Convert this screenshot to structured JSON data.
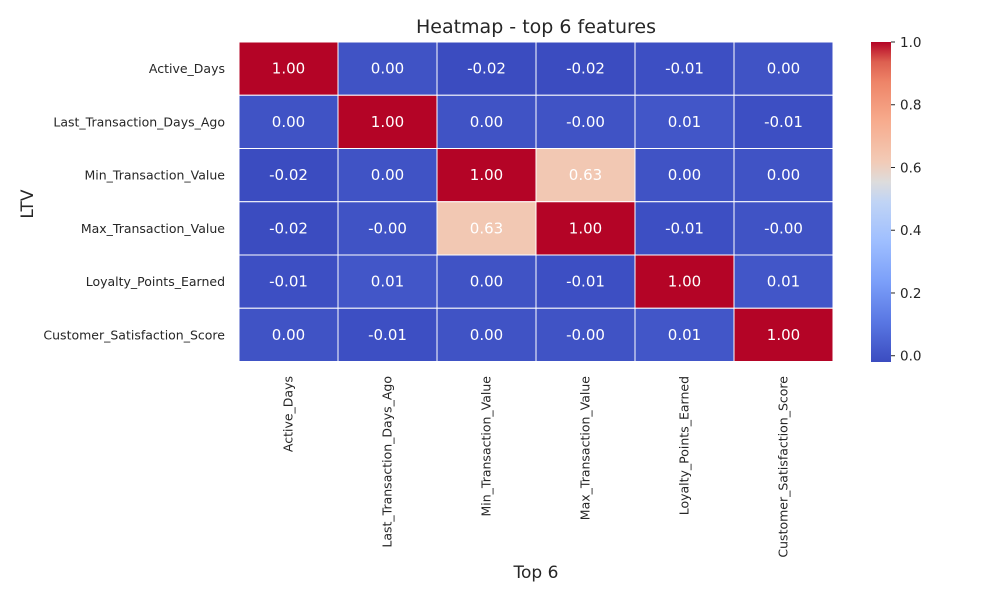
{
  "chart_data": {
    "type": "heatmap",
    "title": "Heatmap - top 6 features",
    "xlabel": "Top 6",
    "ylabel": "LTV",
    "row_labels": [
      "Active_Days",
      "Last_Transaction_Days_Ago",
      "Min_Transaction_Value",
      "Max_Transaction_Value",
      "Loyalty_Points_Earned",
      "Customer_Satisfaction_Score"
    ],
    "col_labels": [
      "Active_Days",
      "Last_Transaction_Days_Ago",
      "Min_Transaction_Value",
      "Max_Transaction_Value",
      "Loyalty_Points_Earned",
      "Customer_Satisfaction_Score"
    ],
    "values": [
      [
        1.0,
        0.0,
        -0.02,
        -0.02,
        -0.01,
        0.0
      ],
      [
        0.0,
        1.0,
        0.0,
        -0.0,
        0.01,
        -0.01
      ],
      [
        -0.02,
        0.0,
        1.0,
        0.63,
        0.0,
        0.0
      ],
      [
        -0.02,
        -0.0,
        0.63,
        1.0,
        -0.01,
        -0.0
      ],
      [
        -0.01,
        0.01,
        0.0,
        -0.01,
        1.0,
        0.01
      ],
      [
        0.0,
        -0.01,
        0.0,
        -0.0,
        0.01,
        1.0
      ]
    ],
    "cell_labels": [
      [
        "1.00",
        "0.00",
        "-0.02",
        "-0.02",
        "-0.01",
        "0.00"
      ],
      [
        "0.00",
        "1.00",
        "0.00",
        "-0.00",
        "0.01",
        "-0.01"
      ],
      [
        "-0.02",
        "0.00",
        "1.00",
        "0.63",
        "0.00",
        "0.00"
      ],
      [
        "-0.02",
        "-0.00",
        "0.63",
        "1.00",
        "-0.01",
        "-0.00"
      ],
      [
        "-0.01",
        "0.01",
        "0.00",
        "-0.01",
        "1.00",
        "0.01"
      ],
      [
        "0.00",
        "-0.01",
        "0.00",
        "-0.00",
        "0.01",
        "1.00"
      ]
    ],
    "colormap": "coolwarm",
    "color_range": [
      -0.02,
      1.0
    ],
    "colorbar_ticks": [
      "0.0",
      "0.2",
      "0.4",
      "0.6",
      "0.8",
      "1.0"
    ],
    "colorbar_tick_values": [
      0.0,
      0.2,
      0.4,
      0.6,
      0.8,
      1.0
    ],
    "grid": false,
    "legend": "colorbar-right"
  }
}
